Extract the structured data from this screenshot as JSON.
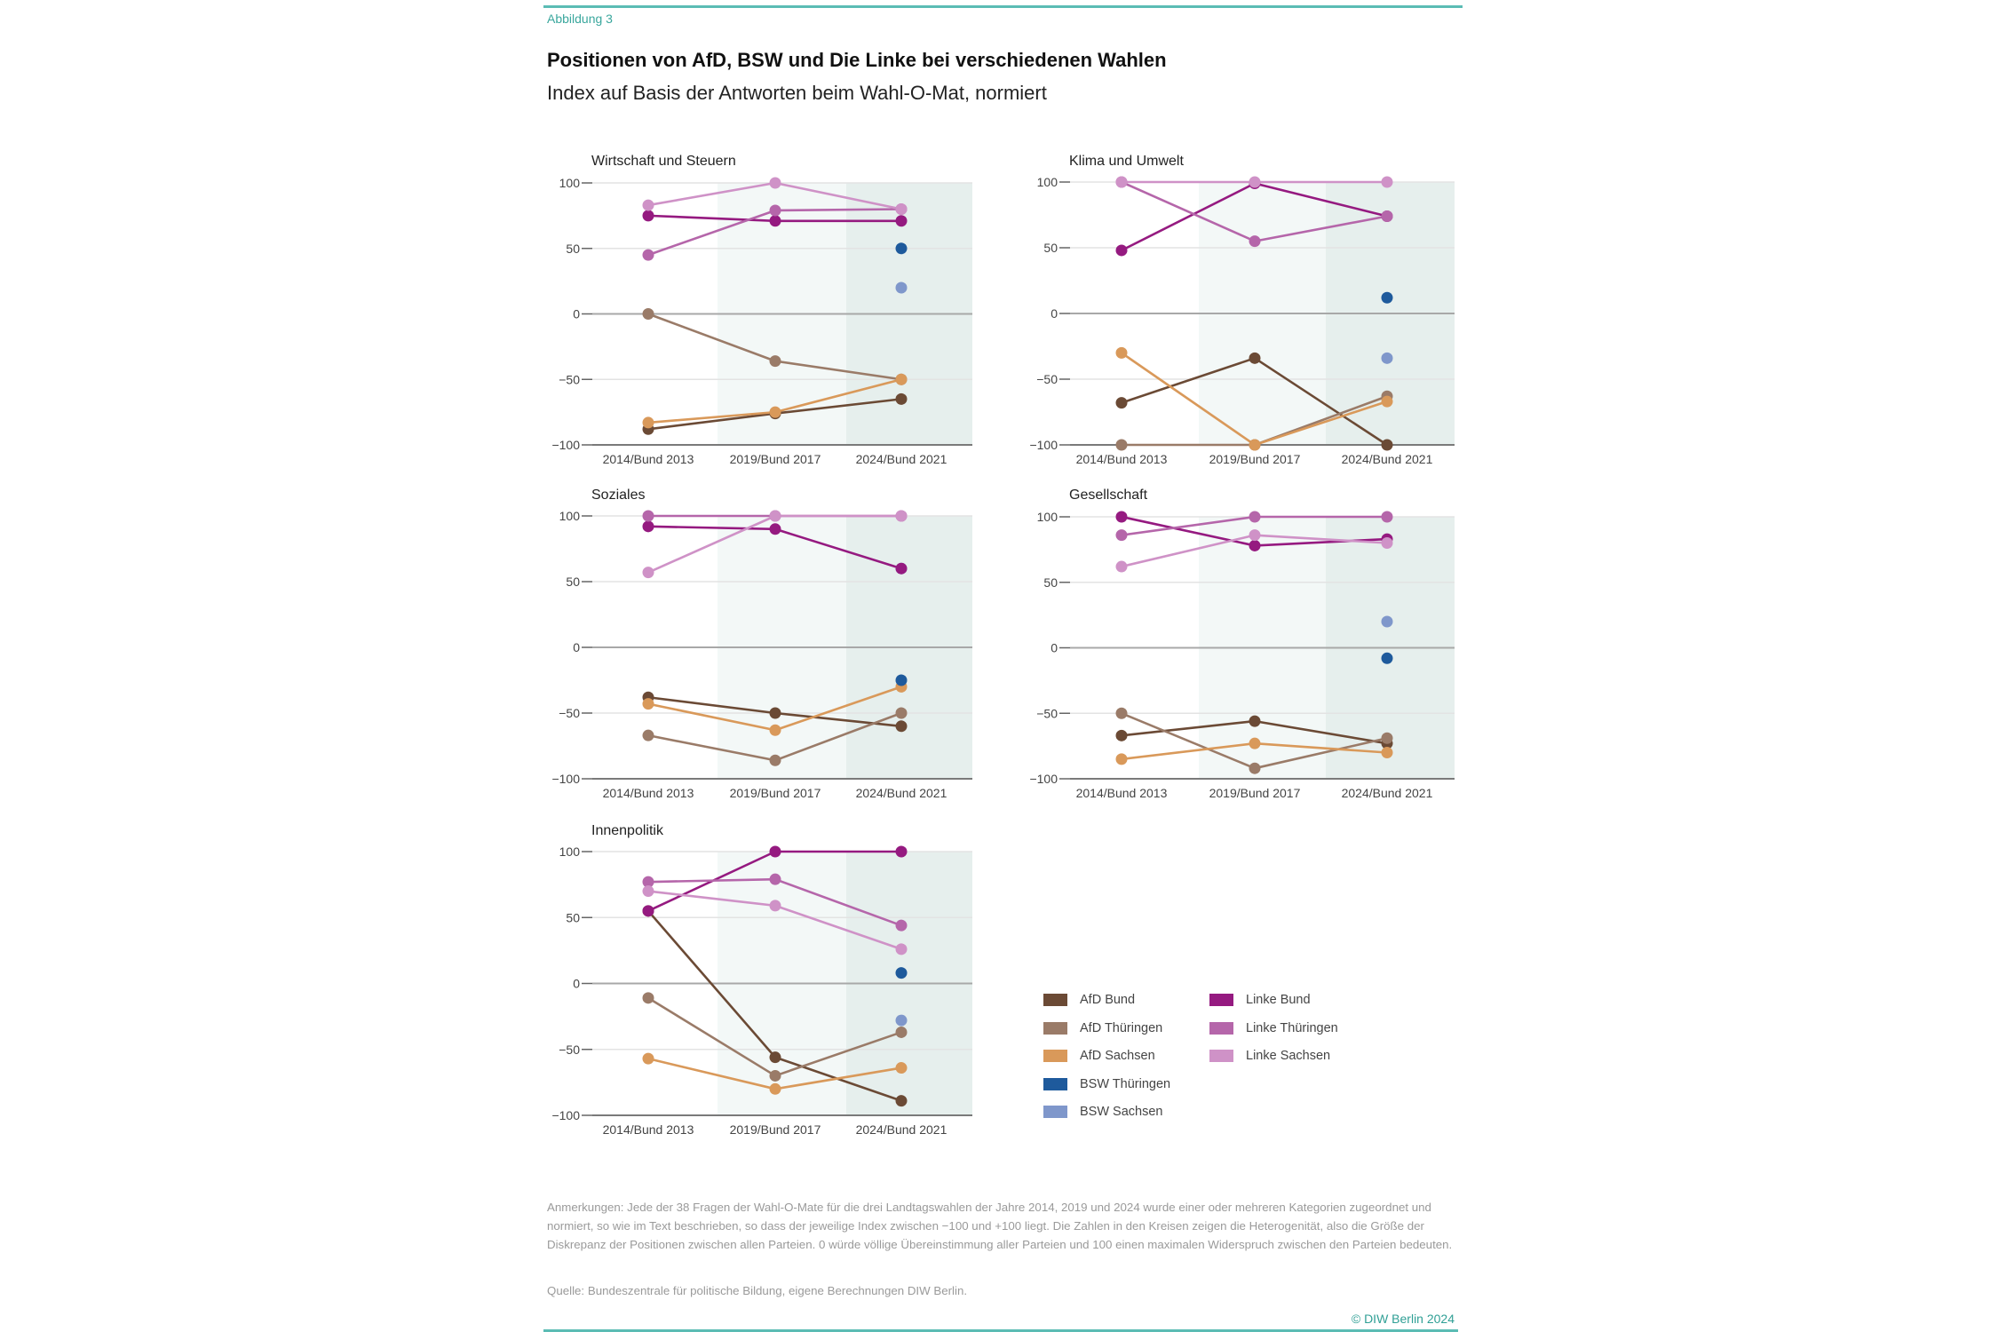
{
  "header": {
    "figure_label": "Abbildung 3",
    "title": "Positionen von AfD, BSW und Die Linke bei verschiedenen Wahlen",
    "subtitle": "Index auf Basis der Antworten beim Wahl-O-Mat, normiert"
  },
  "footer": {
    "notes": "Anmerkungen: Jede der 38 Fragen der Wahl-O-Mate für die drei Landtagswahlen der Jahre 2014, 2019 und 2024 wurde einer oder mehreren Kategorien zugeordnet und normiert, so wie im Text beschrieben, so dass der jeweilige Index zwischen −100 und +100 liegt. Die Zahlen in den Kreisen zeigen die Heterogenität, also die Größe der Diskrepanz der Positionen zwischen allen Parteien. 0 würde völlige Übereinstimmung aller Parteien und 100 einen maximalen Widerspruch zwischen den Parteien bedeuten.",
    "source": "Quelle: Bundeszentrale für politische Bildung, eigene Berechnungen DIW Berlin.",
    "copyright": "© DIW Berlin 2024"
  },
  "legend": [
    {
      "key": "afd_bund",
      "label": "AfD Bund",
      "color": "#6b4a35"
    },
    {
      "key": "afd_thueringen",
      "label": "AfD Thüringen",
      "color": "#9a7b68"
    },
    {
      "key": "afd_sachsen",
      "label": "AfD Sachsen",
      "color": "#d9995a"
    },
    {
      "key": "bsw_thueringen",
      "label": "BSW Thüringen",
      "color": "#1e5a9c"
    },
    {
      "key": "bsw_sachsen",
      "label": "BSW Sachsen",
      "color": "#7f97cb"
    },
    {
      "key": "linke_bund",
      "label": "Linke Bund",
      "color": "#951a80"
    },
    {
      "key": "linke_thueringen",
      "label": "Linke Thüringen",
      "color": "#b566aa"
    },
    {
      "key": "linke_sachsen",
      "label": "Linke Sachsen",
      "color": "#cf92c7"
    }
  ],
  "chart_data": [
    {
      "type": "line",
      "title": "Wirtschaft und Steuern",
      "categories": [
        "2014/Bund 2013",
        "2019/Bund 2017",
        "2024/Bund 2021"
      ],
      "ylim": [
        -100,
        100
      ],
      "yticks": [
        100,
        50,
        0,
        -50,
        -100
      ],
      "ytick_labels": [
        "100",
        "50",
        "0",
        "−50",
        "−100"
      ],
      "series": [
        {
          "name": "AfD Bund",
          "key": "afd_bund",
          "values": [
            -88,
            -76,
            -65
          ]
        },
        {
          "name": "AfD Thüringen",
          "key": "afd_thueringen",
          "values": [
            0,
            -36,
            -50
          ]
        },
        {
          "name": "AfD Sachsen",
          "key": "afd_sachsen",
          "values": [
            -83,
            -75,
            -50
          ]
        },
        {
          "name": "BSW Thüringen",
          "key": "bsw_thueringen",
          "values": [
            null,
            null,
            50
          ]
        },
        {
          "name": "BSW Sachsen",
          "key": "bsw_sachsen",
          "values": [
            null,
            null,
            20
          ]
        },
        {
          "name": "Linke Bund",
          "key": "linke_bund",
          "values": [
            75,
            71,
            71
          ]
        },
        {
          "name": "Linke Thüringen",
          "key": "linke_thueringen",
          "values": [
            45,
            79,
            80
          ]
        },
        {
          "name": "Linke Sachsen",
          "key": "linke_sachsen",
          "values": [
            83,
            100,
            80
          ]
        }
      ]
    },
    {
      "type": "line",
      "title": "Klima und Umwelt",
      "categories": [
        "2014/Bund 2013",
        "2019/Bund 2017",
        "2024/Bund 2021"
      ],
      "ylim": [
        -100,
        100
      ],
      "yticks": [
        100,
        50,
        0,
        -50,
        -100
      ],
      "ytick_labels": [
        "100",
        "50",
        "0",
        "−50",
        "−100"
      ],
      "series": [
        {
          "name": "AfD Bund",
          "key": "afd_bund",
          "values": [
            -68,
            -34,
            -100
          ]
        },
        {
          "name": "AfD Thüringen",
          "key": "afd_thueringen",
          "values": [
            -100,
            -100,
            -63
          ]
        },
        {
          "name": "AfD Sachsen",
          "key": "afd_sachsen",
          "values": [
            -30,
            -100,
            -67
          ]
        },
        {
          "name": "BSW Thüringen",
          "key": "bsw_thueringen",
          "values": [
            null,
            null,
            12
          ]
        },
        {
          "name": "BSW Sachsen",
          "key": "bsw_sachsen",
          "values": [
            null,
            null,
            -34
          ]
        },
        {
          "name": "Linke Bund",
          "key": "linke_bund",
          "values": [
            48,
            99,
            74
          ]
        },
        {
          "name": "Linke Thüringen",
          "key": "linke_thueringen",
          "values": [
            100,
            55,
            74
          ]
        },
        {
          "name": "Linke Sachsen",
          "key": "linke_sachsen",
          "values": [
            100,
            100,
            100
          ]
        }
      ]
    },
    {
      "type": "line",
      "title": "Soziales",
      "categories": [
        "2014/Bund 2013",
        "2019/Bund 2017",
        "2024/Bund 2021"
      ],
      "ylim": [
        -100,
        100
      ],
      "yticks": [
        100,
        50,
        0,
        -50,
        -100
      ],
      "ytick_labels": [
        "100",
        "50",
        "0",
        "−50",
        "−100"
      ],
      "series": [
        {
          "name": "AfD Bund",
          "key": "afd_bund",
          "values": [
            -38,
            -50,
            -60
          ]
        },
        {
          "name": "AfD Thüringen",
          "key": "afd_thueringen",
          "values": [
            -67,
            -86,
            -50
          ]
        },
        {
          "name": "AfD Sachsen",
          "key": "afd_sachsen",
          "values": [
            -43,
            -63,
            -30
          ]
        },
        {
          "name": "BSW Thüringen",
          "key": "bsw_thueringen",
          "values": [
            null,
            null,
            -25
          ]
        },
        {
          "name": "BSW Sachsen",
          "key": "bsw_sachsen",
          "values": [
            null,
            null,
            60
          ]
        },
        {
          "name": "Linke Bund",
          "key": "linke_bund",
          "values": [
            92,
            90,
            60
          ]
        },
        {
          "name": "Linke Thüringen",
          "key": "linke_thueringen",
          "values": [
            100,
            100,
            100
          ]
        },
        {
          "name": "Linke Sachsen",
          "key": "linke_sachsen",
          "values": [
            57,
            100,
            100
          ]
        }
      ]
    },
    {
      "type": "line",
      "title": "Gesellschaft",
      "categories": [
        "2014/Bund 2013",
        "2019/Bund 2017",
        "2024/Bund 2021"
      ],
      "ylim": [
        -100,
        100
      ],
      "yticks": [
        100,
        50,
        0,
        -50,
        -100
      ],
      "ytick_labels": [
        "100",
        "50",
        "0",
        "−50",
        "−100"
      ],
      "series": [
        {
          "name": "AfD Bund",
          "key": "afd_bund",
          "values": [
            -67,
            -56,
            -73
          ]
        },
        {
          "name": "AfD Thüringen",
          "key": "afd_thueringen",
          "values": [
            -50,
            -92,
            -69
          ]
        },
        {
          "name": "AfD Sachsen",
          "key": "afd_sachsen",
          "values": [
            -85,
            -73,
            -80
          ]
        },
        {
          "name": "BSW Thüringen",
          "key": "bsw_thueringen",
          "values": [
            null,
            null,
            -8
          ]
        },
        {
          "name": "BSW Sachsen",
          "key": "bsw_sachsen",
          "values": [
            null,
            null,
            20
          ]
        },
        {
          "name": "Linke Bund",
          "key": "linke_bund",
          "values": [
            100,
            78,
            83
          ]
        },
        {
          "name": "Linke Thüringen",
          "key": "linke_thueringen",
          "values": [
            86,
            100,
            100
          ]
        },
        {
          "name": "Linke Sachsen",
          "key": "linke_sachsen",
          "values": [
            62,
            86,
            80
          ]
        }
      ]
    },
    {
      "type": "line",
      "title": "Innenpolitik",
      "categories": [
        "2014/Bund 2013",
        "2019/Bund 2017",
        "2024/Bund 2021"
      ],
      "ylim": [
        -100,
        100
      ],
      "yticks": [
        100,
        50,
        0,
        -50,
        -100
      ],
      "ytick_labels": [
        "100",
        "50",
        "0",
        "−50",
        "−100"
      ],
      "series": [
        {
          "name": "AfD Bund",
          "key": "afd_bund",
          "values": [
            55,
            -56,
            -89
          ]
        },
        {
          "name": "AfD Thüringen",
          "key": "afd_thueringen",
          "values": [
            -11,
            -70,
            -37
          ]
        },
        {
          "name": "AfD Sachsen",
          "key": "afd_sachsen",
          "values": [
            -57,
            -80,
            -64
          ]
        },
        {
          "name": "BSW Thüringen",
          "key": "bsw_thueringen",
          "values": [
            null,
            null,
            8
          ]
        },
        {
          "name": "BSW Sachsen",
          "key": "bsw_sachsen",
          "values": [
            null,
            null,
            -28
          ]
        },
        {
          "name": "Linke Bund",
          "key": "linke_bund",
          "values": [
            55,
            100,
            100
          ]
        },
        {
          "name": "Linke Thüringen",
          "key": "linke_thueringen",
          "values": [
            77,
            79,
            44
          ]
        },
        {
          "name": "Linke Sachsen",
          "key": "linke_sachsen",
          "values": [
            70,
            59,
            26
          ]
        }
      ]
    }
  ]
}
